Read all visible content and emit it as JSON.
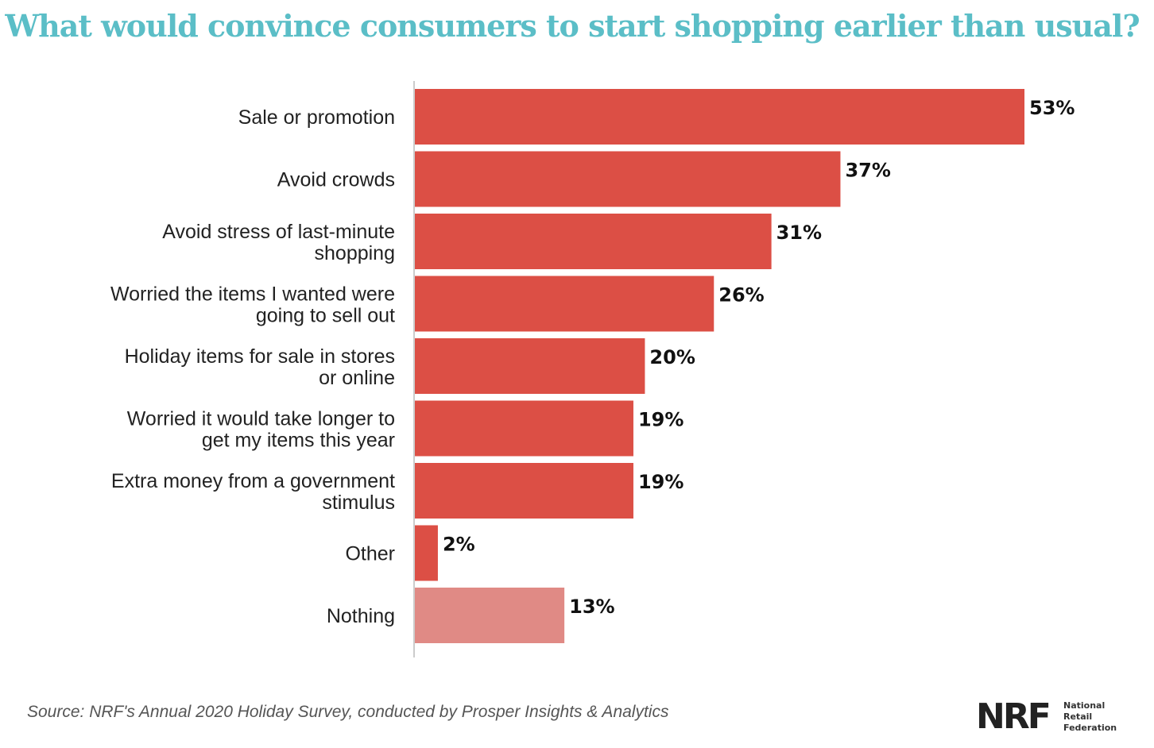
{
  "chart_data": {
    "type": "bar",
    "orientation": "horizontal",
    "title": "What would convince consumers to start shopping earlier than usual?",
    "categories": [
      "Sale or promotion",
      "Avoid crowds",
      "Avoid stress of last-minute shopping",
      "Worried the items I wanted were going to sell out",
      "Holiday items for sale in stores or online",
      "Worried it would take longer to get my items this year",
      "Extra money from a government stimulus",
      "Other",
      "Nothing"
    ],
    "category_lines": [
      [
        "Sale or promotion"
      ],
      [
        "Avoid crowds"
      ],
      [
        "Avoid stress of last-minute",
        "shopping"
      ],
      [
        "Worried the items I wanted were",
        "going to sell out"
      ],
      [
        "Holiday items for sale in stores",
        "or online"
      ],
      [
        "Worried it would take longer to",
        "get my items this year"
      ],
      [
        "Extra money from a government",
        "stimulus"
      ],
      [
        "Other"
      ],
      [
        "Nothing"
      ]
    ],
    "values": [
      53,
      37,
      31,
      26,
      20,
      19,
      19,
      2,
      13
    ],
    "value_labels": [
      "53%",
      "37%",
      "31%",
      "26%",
      "20%",
      "19%",
      "19%",
      "2%",
      "13%"
    ],
    "xlim": [
      0,
      53
    ],
    "grid": false,
    "legend": "none",
    "colors": {
      "bar": "#dc4f45",
      "bar_highlight_last": "#e08a85",
      "title": "#5bbec7",
      "axis": "#bbbbbb"
    }
  },
  "footer": {
    "source": "Source: NRF's Annual 2020 Holiday Survey, conducted by Prosper Insights & Analytics"
  },
  "logo": {
    "mark": "NRF",
    "line1": "National",
    "line2": "Retail",
    "line3": "Federation"
  }
}
